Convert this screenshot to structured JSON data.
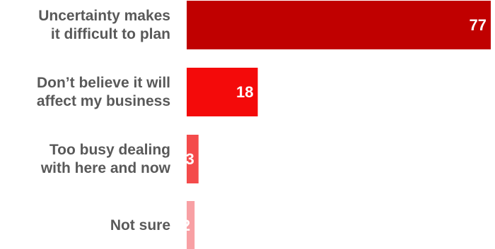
{
  "chart_data": {
    "type": "bar",
    "orientation": "horizontal",
    "categories": [
      [
        "Uncertainty makes",
        "it difficult to plan"
      ],
      [
        "Don’t believe it will",
        "affect my business"
      ],
      [
        "Too busy dealing",
        "with here and now"
      ],
      [
        "Not sure"
      ]
    ],
    "values": [
      77,
      18,
      3,
      2
    ],
    "value_labels": [
      "77",
      "18",
      "3",
      "2"
    ],
    "colors": [
      "#C00000",
      "#F40A0A",
      "#F44B4B",
      "#F8A0A4"
    ],
    "xlim": [
      0,
      77
    ],
    "grid": false,
    "legend": "none"
  }
}
